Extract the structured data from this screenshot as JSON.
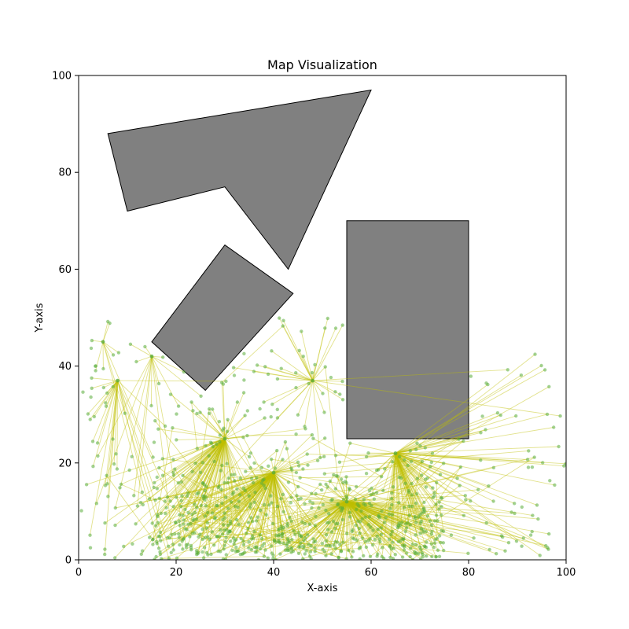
{
  "chart_data": {
    "type": "scatter",
    "title": "Map Visualization",
    "xlabel": "X-axis",
    "ylabel": "Y-axis",
    "xlim": [
      0,
      100
    ],
    "ylim": [
      0,
      100
    ],
    "xticks": [
      0,
      20,
      40,
      60,
      80,
      100
    ],
    "yticks": [
      0,
      20,
      40,
      60,
      80,
      100
    ],
    "grid": false,
    "obstacle_color": "#808080",
    "obstacle_edge_color": "#000000",
    "edge_color": "#bfbf00",
    "node_color": "#5aad3a",
    "obstacles": [
      [
        [
          6,
          88
        ],
        [
          60,
          97
        ],
        [
          43,
          60
        ],
        [
          30,
          77
        ],
        [
          10,
          72
        ]
      ],
      [
        [
          15,
          45
        ],
        [
          30,
          65
        ],
        [
          44,
          55
        ],
        [
          26,
          35
        ]
      ],
      [
        [
          55,
          25
        ],
        [
          80,
          25
        ],
        [
          80,
          70
        ],
        [
          55,
          70
        ]
      ]
    ],
    "hubs": [
      [
        5,
        45
      ],
      [
        8,
        37
      ],
      [
        48,
        37
      ],
      [
        15,
        42
      ],
      [
        40,
        18
      ],
      [
        65,
        22
      ],
      [
        30,
        25
      ],
      [
        55,
        12
      ]
    ],
    "node_count": 900
  }
}
